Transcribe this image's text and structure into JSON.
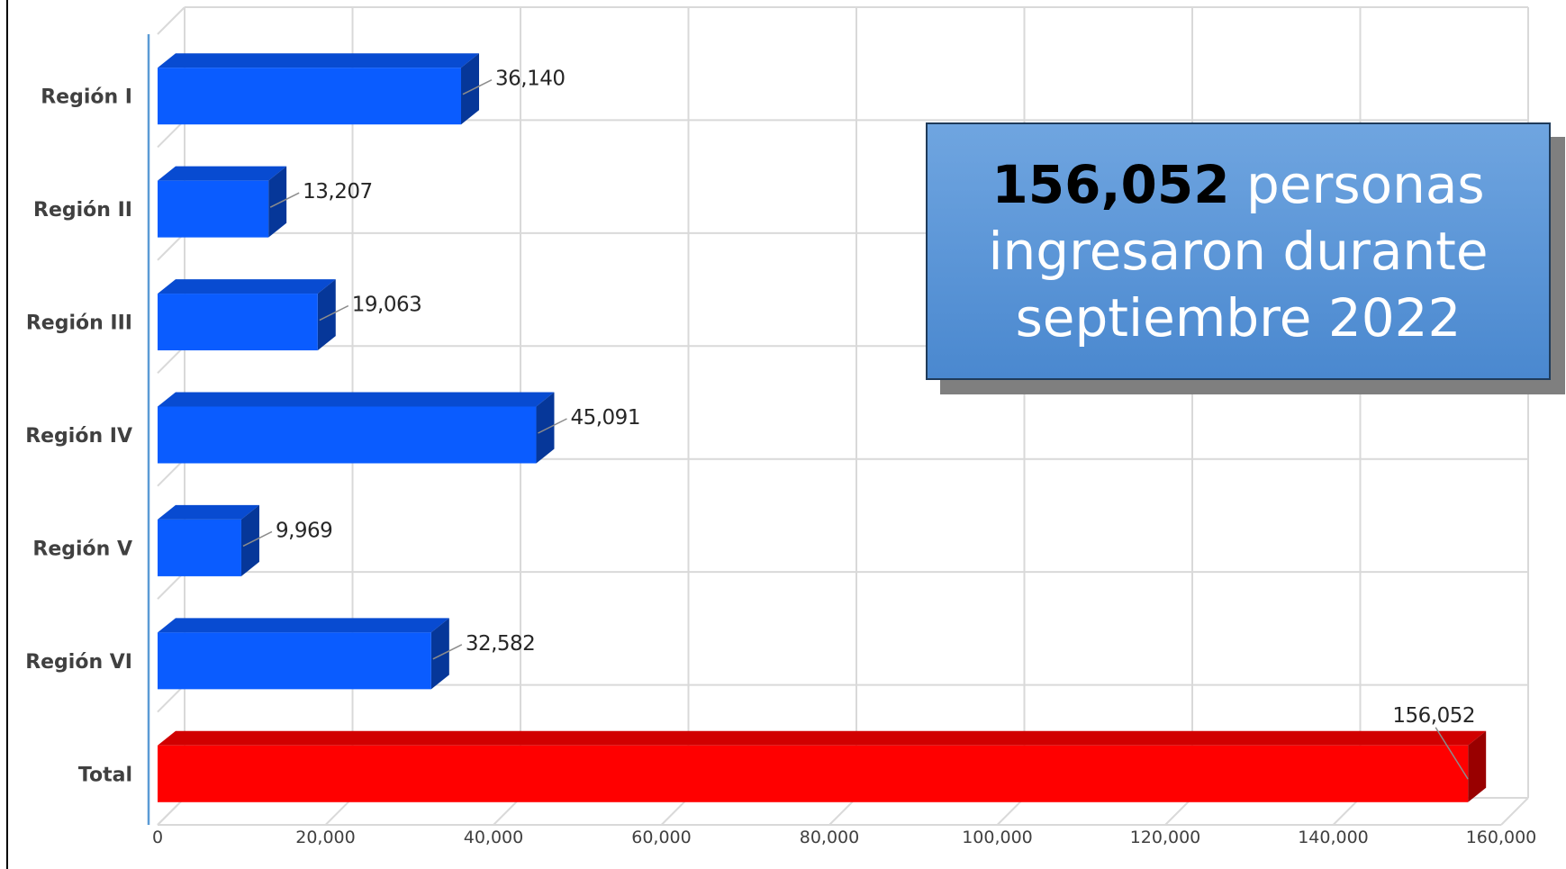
{
  "chart_data": {
    "type": "bar",
    "orientation": "horizontal",
    "categories": [
      "Región I",
      "Región II",
      "Región III",
      "Región IV",
      "Región V",
      "Región VI",
      "Total"
    ],
    "values": [
      36140,
      13207,
      19063,
      45091,
      9969,
      32582,
      156052
    ],
    "data_labels": [
      "36,140",
      "13,207",
      "19,063",
      "45,091",
      "9,969",
      "32,582",
      "156,052"
    ],
    "bar_colors": [
      "#0a5cff",
      "#0a5cff",
      "#0a5cff",
      "#0a5cff",
      "#0a5cff",
      "#0a5cff",
      "#ff0000"
    ],
    "xlim": [
      0,
      160000
    ],
    "x_ticks": [
      0,
      20000,
      40000,
      60000,
      80000,
      100000,
      120000,
      140000,
      160000
    ],
    "x_tick_labels": [
      "0",
      "20,000",
      "40,000",
      "60,000",
      "80,000",
      "100,000",
      "120,000",
      "140,000",
      "160,000"
    ],
    "grid": true,
    "style": "3d"
  },
  "callout": {
    "highlight": "156,052",
    "line1_rest": " personas",
    "line2": "ingresaron durante",
    "line3": "septiembre 2022"
  },
  "colors": {
    "bar": "#0a5cff",
    "total_bar": "#ff0000",
    "callout_bg": "#5b97d8",
    "grid": "#d9d9d9"
  }
}
